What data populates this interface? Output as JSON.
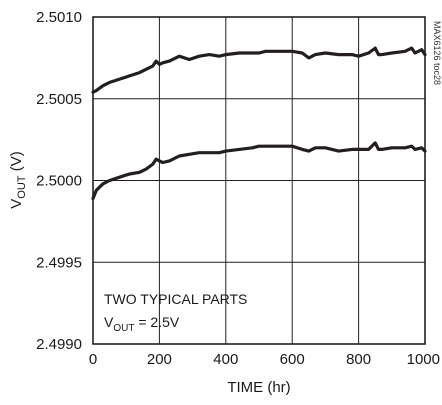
{
  "chart_data": {
    "type": "line",
    "xlabel": "TIME (hr)",
    "ylabel_main": "V",
    "ylabel_sub": "OUT",
    "ylabel_unit": " (V)",
    "xlim": [
      0,
      1000
    ],
    "ylim": [
      2.499,
      2.501
    ],
    "xticks": [
      0,
      200,
      400,
      600,
      800,
      1000
    ],
    "yticks": [
      "2.4990",
      "2.4995",
      "2.5000",
      "2.5005",
      "2.5010"
    ],
    "grid": true,
    "annotation_line1": "TWO TYPICAL PARTS",
    "annotation_line2_main": "V",
    "annotation_line2_sub": "OUT",
    "annotation_line2_rest": " = 2.5V",
    "figure_id": "MAX6126 toc28",
    "series": [
      {
        "x": [
          0,
          10,
          30,
          50,
          80,
          110,
          140,
          160,
          180,
          190,
          200,
          210,
          230,
          260,
          290,
          320,
          350,
          380,
          400,
          440,
          480,
          500,
          520,
          540,
          560,
          600,
          630,
          650,
          670,
          700,
          740,
          780,
          800,
          830,
          850,
          860,
          870,
          900,
          940,
          960,
          970,
          990,
          1000
        ],
        "values": [
          2.50054,
          2.50055,
          2.50058,
          2.5006,
          2.50062,
          2.50064,
          2.50066,
          2.50068,
          2.5007,
          2.50073,
          2.50071,
          2.50072,
          2.50073,
          2.50076,
          2.50074,
          2.50076,
          2.50077,
          2.50076,
          2.50077,
          2.50078,
          2.50078,
          2.50078,
          2.50079,
          2.50079,
          2.50079,
          2.50079,
          2.50078,
          2.50075,
          2.50077,
          2.50078,
          2.50077,
          2.50077,
          2.50076,
          2.50078,
          2.50081,
          2.50077,
          2.50077,
          2.50078,
          2.50079,
          2.50081,
          2.50078,
          2.5008,
          2.50077
        ]
      },
      {
        "x": [
          0,
          10,
          30,
          50,
          80,
          110,
          140,
          160,
          180,
          190,
          200,
          210,
          230,
          260,
          290,
          320,
          350,
          380,
          400,
          440,
          480,
          500,
          520,
          540,
          560,
          600,
          630,
          650,
          670,
          700,
          740,
          780,
          800,
          830,
          850,
          860,
          870,
          900,
          940,
          960,
          970,
          990,
          1000
        ],
        "values": [
          2.49989,
          2.49994,
          2.49998,
          2.5,
          2.50002,
          2.50004,
          2.50005,
          2.50007,
          2.5001,
          2.50013,
          2.50012,
          2.50011,
          2.50012,
          2.50015,
          2.50016,
          2.50017,
          2.50017,
          2.50017,
          2.50018,
          2.50019,
          2.5002,
          2.50021,
          2.50021,
          2.50021,
          2.50021,
          2.50021,
          2.50019,
          2.50018,
          2.5002,
          2.5002,
          2.50018,
          2.50019,
          2.50019,
          2.50019,
          2.50023,
          2.50019,
          2.50019,
          2.5002,
          2.5002,
          2.50021,
          2.50019,
          2.5002,
          2.50018
        ]
      }
    ]
  },
  "colors": {
    "line": "#231f20",
    "frame": "#231f20",
    "grid": "#231f20"
  }
}
